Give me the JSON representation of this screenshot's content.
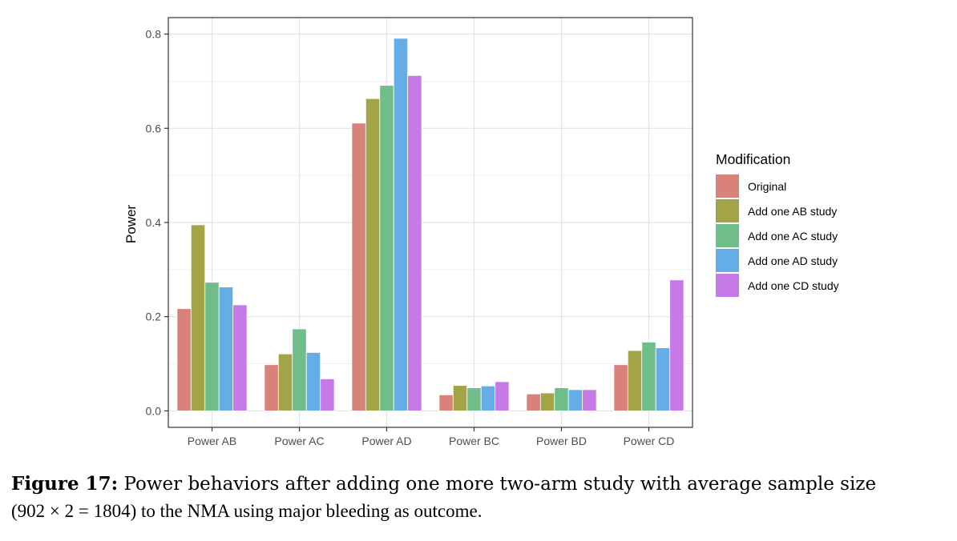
{
  "chart_data": {
    "type": "bar",
    "ylabel": "Power",
    "ylim": [
      -0.035,
      0.835
    ],
    "yticks": [
      0.0,
      0.2,
      0.4,
      0.6,
      0.8
    ],
    "ytick_labels": [
      "0.0",
      "0.2",
      "0.4",
      "0.6",
      "0.8"
    ],
    "grid": true,
    "legend_position": "right",
    "legend_title": "Modification",
    "categories": [
      "Power AB",
      "Power AC",
      "Power AD",
      "Power BC",
      "Power BD",
      "Power CD"
    ],
    "series": [
      {
        "name": "Original",
        "color": "#d9827a",
        "values": [
          0.217,
          0.098,
          0.611,
          0.034,
          0.036,
          0.098
        ]
      },
      {
        "name": "Add one AB study",
        "color": "#a3a447",
        "values": [
          0.395,
          0.121,
          0.663,
          0.054,
          0.038,
          0.128
        ]
      },
      {
        "name": "Add one AC study",
        "color": "#6fbd88",
        "values": [
          0.273,
          0.174,
          0.691,
          0.049,
          0.049,
          0.146
        ]
      },
      {
        "name": "Add one AD study",
        "color": "#64ade6",
        "values": [
          0.263,
          0.124,
          0.791,
          0.053,
          0.045,
          0.134
        ]
      },
      {
        "name": "Add one CD study",
        "color": "#c77ae6",
        "values": [
          0.225,
          0.068,
          0.712,
          0.062,
          0.045,
          0.278
        ]
      }
    ]
  },
  "caption": {
    "label": "Figure 17:",
    "line1": "Power behaviors after adding one more two-arm study with average sample size",
    "line2": "(902 × 2 = 1804) to the NMA using major bleeding as outcome."
  }
}
